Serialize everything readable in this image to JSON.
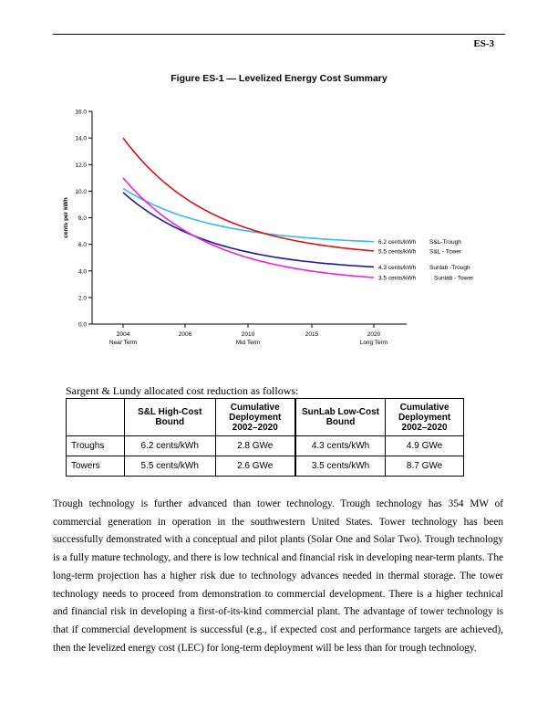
{
  "header": {
    "page_id": "ES-3"
  },
  "figure": {
    "title": "Figure ES-1 — Levelized Energy Cost Summary"
  },
  "chart_data": {
    "type": "line",
    "title": "Figure ES-1 — Levelized Energy Cost Summary",
    "ylabel": "cents per kWh",
    "xlabel": "",
    "ylim": [
      0,
      16
    ],
    "yticks": [
      "0.0",
      "2.0",
      "4.0",
      "6.0",
      "8.0",
      "10.0",
      "12.0",
      "14.0",
      "16.0"
    ],
    "xticks": [
      {
        "year": "2004",
        "sub": "Near Term"
      },
      {
        "year": "2006",
        "sub": ""
      },
      {
        "year": "2010",
        "sub": "Mid Term"
      },
      {
        "year": "2015",
        "sub": ""
      },
      {
        "year": "2020",
        "sub": "Long Term"
      }
    ],
    "grid": false,
    "legend": "right",
    "series": [
      {
        "name": "S&L-Trough",
        "color": "#33bbee",
        "start": 10.2,
        "end": 6.2,
        "end_label": "6.2 cents/kWh"
      },
      {
        "name": "S&L - Tower",
        "color": "#dd1111",
        "start": 14.0,
        "end": 5.5,
        "end_label": "5.5 cents/kWh"
      },
      {
        "name": "Sunlab -Trough",
        "color": "#1a1a99",
        "start": 9.9,
        "end": 4.3,
        "end_label": "4.3 cents/kWh"
      },
      {
        "name": "Sunlab - Tower",
        "color": "#ee22dd",
        "start": 11.0,
        "end": 3.5,
        "end_label": "3.5 cents/kWh"
      }
    ]
  },
  "intro": "Sargent & Lundy allocated cost reduction as follows:",
  "table": {
    "headers": [
      "",
      "S&L High-Cost Bound",
      "Cumulative Deployment 2002–2020",
      "SunLab Low-Cost Bound",
      "Cumulative Deployment 2002–2020"
    ],
    "rows": [
      [
        "Troughs",
        "6.2 cents/kWh",
        "2.8 GWe",
        "4.3 cents/kWh",
        "4.9 GWe"
      ],
      [
        "Towers",
        "5.5 cents/kWh",
        "2.6 GWe",
        "3.5 cents/kWh",
        "8.7 GWe"
      ]
    ]
  },
  "body": "Trough technology is further advanced than tower technology. Trough technology has 354 MW of commercial generation in operation in the southwestern United States. Tower technology has been successfully demonstrated with a conceptual and pilot plants (Solar One and Solar Two). Trough technology is a fully mature technology, and there is low technical and financial risk in developing near-term plants. The long-term projection has a higher risk due to technology advances needed in thermal storage. The tower technology needs to proceed from demonstration to commercial development. There is a higher technical and financial risk in developing a first-of-its-kind commercial plant. The advantage of tower technology is that if commercial development is successful (e.g., if expected cost and performance targets are achieved), then the levelized energy cost (LEC) for long-term deployment will be less than for trough technology."
}
